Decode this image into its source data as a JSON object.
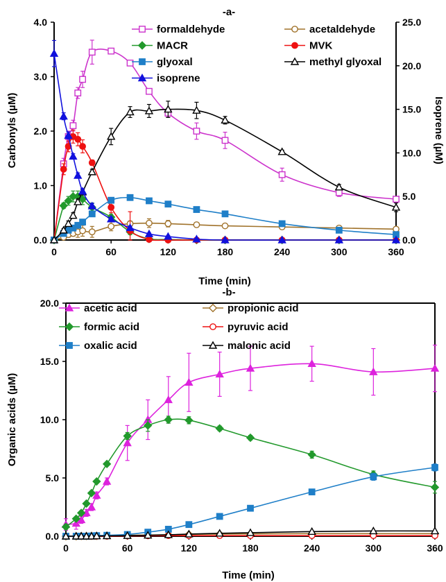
{
  "chart_data": [
    {
      "type": "line",
      "title": "-a-",
      "xlabel": "Time (min)",
      "ylabel": "Carbonyls (µM)",
      "y2label": "Isoprene (µM)",
      "xlim": [
        0,
        360
      ],
      "ylim": [
        0,
        4.0
      ],
      "y2lim": [
        0,
        25.0
      ],
      "xticks": [
        "0",
        "60",
        "120",
        "180",
        "240",
        "300",
        "360"
      ],
      "yticks": [
        "0.0",
        "1.0",
        "2.0",
        "3.0",
        "4.0"
      ],
      "y2ticks": [
        "0.0",
        "5.0",
        "10.0",
        "15.0",
        "20.0",
        "25.0"
      ],
      "grid": false,
      "legend": "top, two columns",
      "series": [
        {
          "name": "formaldehyde",
          "axis": "left",
          "color": "#CC33CC",
          "marker": "square-open",
          "x": [
            0,
            10,
            15,
            20,
            25,
            30,
            40,
            60,
            80,
            100,
            120,
            150,
            180,
            240,
            300,
            360
          ],
          "y": [
            0.0,
            1.4,
            1.9,
            2.1,
            2.7,
            2.95,
            3.45,
            3.47,
            3.25,
            2.73,
            2.33,
            2.0,
            1.83,
            1.2,
            0.87,
            0.75
          ],
          "err": [
            0,
            0.1,
            0.1,
            0.1,
            0.1,
            0.15,
            0.22,
            0.03,
            0.05,
            0.05,
            0.06,
            0.15,
            0.15,
            0.12,
            0.07,
            0.05
          ]
        },
        {
          "name": "acetaldehyde",
          "axis": "left",
          "color": "#A0722A",
          "marker": "circle-open",
          "x": [
            0,
            10,
            15,
            20,
            25,
            30,
            40,
            60,
            80,
            100,
            120,
            150,
            180,
            240,
            300,
            360
          ],
          "y": [
            0.0,
            0.05,
            0.1,
            0.12,
            0.15,
            0.17,
            0.15,
            0.25,
            0.3,
            0.31,
            0.3,
            0.28,
            0.26,
            0.24,
            0.22,
            0.2
          ],
          "err": [
            0,
            0.03,
            0.05,
            0.05,
            0.1,
            0.1,
            0.1,
            0.08,
            0.05,
            0.08,
            0.06,
            0.03,
            0.03,
            0.02,
            0.02,
            0.02
          ]
        },
        {
          "name": "MACR",
          "axis": "left",
          "color": "#22992C",
          "marker": "diamond",
          "x": [
            0,
            10,
            15,
            20,
            25,
            30,
            40,
            60,
            80,
            100,
            120,
            150,
            180,
            240,
            300,
            360
          ],
          "y": [
            0.0,
            0.63,
            0.72,
            0.8,
            0.8,
            0.75,
            0.6,
            0.42,
            0.15,
            0.02,
            0.01,
            0.0,
            0.0,
            0.0,
            0.0,
            0.0
          ],
          "err": [
            0,
            0.05,
            0.08,
            0.1,
            0.1,
            0.1,
            0.08,
            0.05,
            0.05,
            0.02,
            0,
            0,
            0,
            0,
            0,
            0
          ]
        },
        {
          "name": "MVK",
          "axis": "left",
          "color": "#EE1111",
          "marker": "circle",
          "x": [
            0,
            10,
            15,
            20,
            25,
            30,
            40,
            60,
            80,
            100,
            120,
            150,
            180,
            240,
            300,
            360
          ],
          "y": [
            0.0,
            1.3,
            1.72,
            1.9,
            1.85,
            1.72,
            1.42,
            0.6,
            0.17,
            0.01,
            0.0,
            0.0,
            0.0,
            0.0,
            0.0,
            0.0
          ],
          "err": [
            0,
            0.1,
            0.1,
            0.12,
            0.12,
            0.12,
            0.05,
            0.1,
            0.35,
            0.02,
            0,
            0,
            0,
            0,
            0,
            0
          ]
        },
        {
          "name": "glyoxal",
          "axis": "left",
          "color": "#1F7FC8",
          "marker": "square",
          "x": [
            0,
            10,
            15,
            20,
            25,
            30,
            40,
            60,
            80,
            100,
            120,
            150,
            180,
            240,
            300,
            360
          ],
          "y": [
            0.0,
            0.12,
            0.18,
            0.22,
            0.27,
            0.33,
            0.48,
            0.73,
            0.78,
            0.72,
            0.66,
            0.56,
            0.48,
            0.3,
            0.18,
            0.1
          ],
          "err": [
            0,
            0.02,
            0.02,
            0.02,
            0.02,
            0.02,
            0.03,
            0.03,
            0.03,
            0.03,
            0.03,
            0.03,
            0.02,
            0.02,
            0.02,
            0.02
          ]
        },
        {
          "name": "methyl glyoxal",
          "axis": "left",
          "color": "#000000",
          "marker": "triangle-open",
          "x": [
            0,
            10,
            15,
            20,
            25,
            30,
            40,
            60,
            80,
            100,
            120,
            150,
            180,
            240,
            300,
            360
          ],
          "y": [
            0.0,
            0.18,
            0.3,
            0.45,
            0.7,
            0.88,
            1.25,
            1.9,
            2.35,
            2.37,
            2.4,
            2.38,
            2.2,
            1.62,
            0.97,
            0.6
          ],
          "err": [
            0,
            0.03,
            0.05,
            0.05,
            0.05,
            0.05,
            0.05,
            0.15,
            0.1,
            0.12,
            0.15,
            0.15,
            0.07,
            0.03,
            0.05,
            0.08
          ]
        },
        {
          "name": "isoprene",
          "axis": "right",
          "color": "#1111DD",
          "marker": "triangle",
          "x": [
            0,
            10,
            15,
            20,
            25,
            30,
            40,
            60,
            80,
            100,
            120,
            150,
            180,
            240,
            300,
            360
          ],
          "y": [
            21.4,
            14.2,
            12.0,
            9.6,
            7.4,
            5.6,
            3.9,
            2.4,
            1.4,
            0.7,
            0.4,
            0.1,
            0.0,
            0.0,
            0.0,
            0.0
          ],
          "err": [
            1.5,
            0.4,
            0.4,
            0.3,
            0.3,
            0.3,
            0.3,
            0.2,
            0.2,
            0.1,
            0.1,
            0,
            0,
            0,
            0,
            0
          ]
        }
      ]
    },
    {
      "type": "line",
      "title": "-b-",
      "xlabel": "Time (min)",
      "ylabel": "Organic acids (µM)",
      "xlim": [
        0,
        360
      ],
      "ylim": [
        0,
        20.0
      ],
      "xticks": [
        "0",
        "60",
        "120",
        "180",
        "240",
        "300",
        "360"
      ],
      "yticks": [
        "0.0",
        "5.0",
        "10.0",
        "15.0",
        "20.0"
      ],
      "grid": false,
      "legend": "top, two columns",
      "series": [
        {
          "name": "acetic acid",
          "color": "#DD22DD",
          "marker": "triangle",
          "x": [
            0,
            10,
            15,
            20,
            25,
            30,
            40,
            60,
            80,
            100,
            120,
            150,
            180,
            240,
            300,
            360
          ],
          "y": [
            1.0,
            1.1,
            1.4,
            2.0,
            2.5,
            3.5,
            4.7,
            8.0,
            10.0,
            11.7,
            13.2,
            13.9,
            14.4,
            14.8,
            14.1,
            14.4
          ],
          "err": [
            0.5,
            0.5,
            0.3,
            0.3,
            0.3,
            0.3,
            0.3,
            1.5,
            1.7,
            2.0,
            2.5,
            1.9,
            1.9,
            1.5,
            2.0,
            2.0
          ]
        },
        {
          "name": "propionic acid",
          "color": "#A0722A",
          "marker": "diamond-open",
          "x": [
            0,
            10,
            15,
            20,
            25,
            30,
            40,
            60,
            80,
            100,
            120,
            150,
            180,
            240,
            300,
            360
          ],
          "y": [
            0.0,
            0.0,
            0.02,
            0.02,
            0.03,
            0.03,
            0.05,
            0.08,
            0.1,
            0.12,
            0.15,
            0.18,
            0.2,
            0.22,
            0.22,
            0.22
          ],
          "err": [
            0,
            0,
            0,
            0,
            0,
            0,
            0,
            0,
            0,
            0,
            0,
            0,
            0,
            0,
            0,
            0
          ]
        },
        {
          "name": "formic acid",
          "color": "#22992C",
          "marker": "diamond",
          "x": [
            0,
            10,
            15,
            20,
            25,
            30,
            40,
            60,
            80,
            100,
            120,
            150,
            180,
            240,
            300,
            360
          ],
          "y": [
            0.8,
            1.5,
            2.0,
            2.8,
            3.7,
            4.7,
            6.2,
            8.6,
            9.5,
            10.0,
            9.95,
            9.25,
            8.45,
            7.0,
            5.3,
            4.2
          ],
          "err": [
            0.2,
            0.1,
            0.1,
            0.1,
            0.1,
            0.1,
            0.1,
            0.3,
            0.5,
            0.3,
            0.3,
            0.2,
            0.2,
            0.3,
            0.3,
            0.5
          ]
        },
        {
          "name": "pyruvic acid",
          "color": "#EE1111",
          "marker": "circle-open",
          "x": [
            0,
            10,
            15,
            20,
            25,
            30,
            40,
            60,
            80,
            100,
            120,
            150,
            180,
            240,
            300,
            360
          ],
          "y": [
            0.0,
            0.0,
            0.0,
            0.0,
            0.0,
            0.0,
            0.0,
            0.02,
            0.04,
            0.05,
            0.05,
            0.05,
            0.05,
            0.05,
            0.05,
            0.05
          ],
          "err": [
            0,
            0,
            0,
            0,
            0,
            0,
            0,
            0,
            0,
            0,
            0,
            0,
            0,
            0,
            0,
            0
          ]
        },
        {
          "name": "oxalic acid",
          "color": "#1F7FC8",
          "marker": "square",
          "x": [
            0,
            10,
            15,
            20,
            25,
            30,
            40,
            60,
            80,
            100,
            120,
            150,
            180,
            240,
            300,
            360
          ],
          "y": [
            0.0,
            0.0,
            0.0,
            0.0,
            0.02,
            0.05,
            0.08,
            0.15,
            0.35,
            0.6,
            1.0,
            1.7,
            2.4,
            3.8,
            5.1,
            5.9
          ],
          "err": [
            0,
            0,
            0,
            0,
            0,
            0,
            0,
            0,
            0.05,
            0.05,
            0.05,
            0.1,
            0.1,
            0.15,
            0.3,
            0.3
          ]
        },
        {
          "name": "malonic acid",
          "color": "#000000",
          "marker": "triangle-open",
          "x": [
            0,
            10,
            15,
            20,
            25,
            30,
            40,
            60,
            80,
            100,
            120,
            150,
            180,
            240,
            300,
            360
          ],
          "y": [
            0.0,
            0.0,
            0.0,
            0.0,
            0.0,
            0.02,
            0.03,
            0.05,
            0.08,
            0.12,
            0.18,
            0.25,
            0.3,
            0.4,
            0.45,
            0.45
          ],
          "err": [
            0,
            0,
            0,
            0,
            0,
            0,
            0,
            0,
            0,
            0,
            0,
            0,
            0,
            0,
            0,
            0
          ]
        }
      ]
    }
  ]
}
